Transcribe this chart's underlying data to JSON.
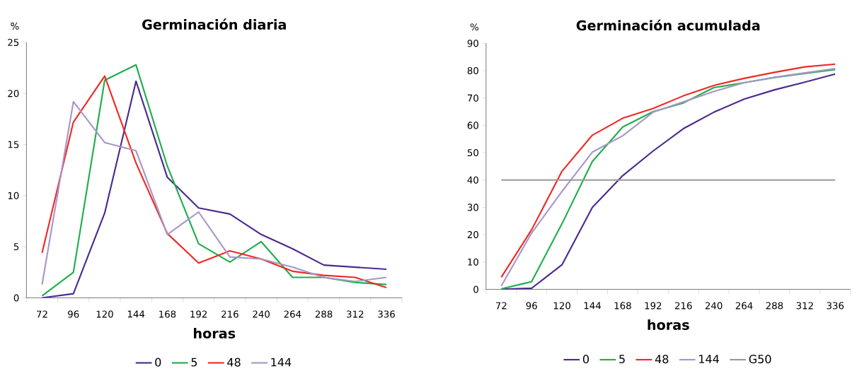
{
  "chart_data": [
    {
      "type": "line",
      "title": "Germinación diaria",
      "xlabel": "horas",
      "ylabel": "%",
      "categories": [
        "72",
        "96",
        "120",
        "144",
        "168",
        "192",
        "216",
        "240",
        "264",
        "288",
        "312",
        "336"
      ],
      "ylim": [
        0,
        25
      ],
      "yticks": [
        0,
        5,
        10,
        15,
        20,
        25
      ],
      "grid": false,
      "legend": "bottom",
      "series": [
        {
          "name": "0",
          "color": "#4b2a8f",
          "values": [
            0,
            0.4,
            8.3,
            21.2,
            11.8,
            8.8,
            8.2,
            6.2,
            4.8,
            3.2,
            3.0,
            2.8
          ]
        },
        {
          "name": "5",
          "color": "#1fae4b",
          "values": [
            0.2,
            2.5,
            21.3,
            22.8,
            12.9,
            5.3,
            3.5,
            5.5,
            2.0,
            2.0,
            1.5,
            1.3
          ]
        },
        {
          "name": "48",
          "color": "#ee2a24",
          "values": [
            4.4,
            17.2,
            21.7,
            13.2,
            6.3,
            3.4,
            4.6,
            3.8,
            2.6,
            2.2,
            2.0,
            1.0
          ]
        },
        {
          "name": "144",
          "color": "#a995c9",
          "values": [
            1.3,
            19.2,
            15.2,
            14.4,
            6.2,
            8.4,
            4.0,
            3.8,
            3.0,
            2.0,
            1.6,
            2.0
          ]
        }
      ]
    },
    {
      "type": "line",
      "title": "Germinación acumulada",
      "xlabel": "horas",
      "ylabel": "%",
      "categories": [
        "72",
        "96",
        "120",
        "144",
        "168",
        "192",
        "216",
        "240",
        "264",
        "288",
        "312",
        "336"
      ],
      "ylim": [
        0,
        90
      ],
      "yticks": [
        0,
        10,
        20,
        30,
        40,
        50,
        60,
        70,
        80,
        90
      ],
      "grid": false,
      "legend": "bottom",
      "series": [
        {
          "name": "0",
          "color": "#4b2a8f",
          "values": [
            0,
            0.4,
            9,
            30,
            41.6,
            50.6,
            58.8,
            64.8,
            69.6,
            73,
            75.8,
            78.8
          ]
        },
        {
          "name": "5",
          "color": "#1fae4b",
          "values": [
            0.2,
            2.8,
            24,
            46.8,
            59.4,
            65,
            68.2,
            73.8,
            75.6,
            77.5,
            79,
            80.4
          ]
        },
        {
          "name": "48",
          "color": "#ee2a24",
          "values": [
            4.4,
            21.8,
            43.2,
            56.4,
            62.6,
            66.2,
            70.8,
            74.6,
            77.2,
            79.4,
            81.4,
            82.4
          ]
        },
        {
          "name": "144",
          "color": "#a995c9",
          "values": [
            1.2,
            20.6,
            35.8,
            50.2,
            56.2,
            64.8,
            68.6,
            72.4,
            75.6,
            77.6,
            79.2,
            80.8
          ]
        },
        {
          "name": "G50",
          "color": "#999999",
          "values": [
            40,
            40,
            40,
            40,
            40,
            40,
            40,
            40,
            40,
            40,
            40,
            40
          ]
        }
      ]
    }
  ]
}
